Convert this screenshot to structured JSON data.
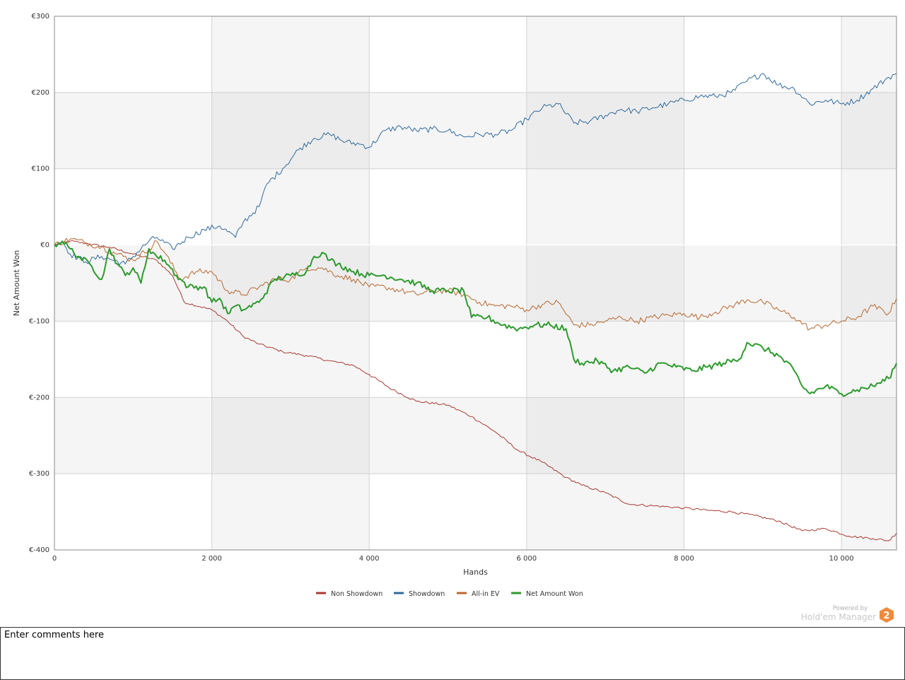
{
  "chart_data": {
    "type": "line",
    "xlabel": "Hands",
    "ylabel": "Net Amount Won",
    "xlim": [
      0,
      10700
    ],
    "ylim": [
      -400,
      300
    ],
    "x_ticks": [
      0,
      2000,
      4000,
      6000,
      8000,
      10000
    ],
    "x_tick_labels": [
      "0",
      "2 000",
      "4 000",
      "6 000",
      "8 000",
      "10 000"
    ],
    "y_ticks": [
      300,
      200,
      100,
      0,
      -100,
      -200,
      -300,
      -400
    ],
    "y_tick_labels": [
      "€300",
      "€200",
      "€100",
      "€0",
      "€-100",
      "€-200",
      "€-300",
      "€-400"
    ],
    "legend_position": "bottom",
    "series": [
      {
        "name": "Non Showdown",
        "color": "#a83a32",
        "x": [
          0,
          200,
          400,
          700,
          1000,
          1300,
          1500,
          1650,
          2000,
          2200,
          2400,
          2600,
          2900,
          3200,
          3500,
          3800,
          4000,
          4300,
          4600,
          5000,
          5300,
          5600,
          5900,
          6200,
          6500,
          6700,
          7000,
          7300,
          7600,
          8000,
          8300,
          8600,
          8900,
          9200,
          9500,
          9800,
          10100,
          10400,
          10600,
          10700
        ],
        "y": [
          0,
          5,
          2,
          -3,
          -12,
          -20,
          -40,
          -75,
          -85,
          -100,
          -120,
          -130,
          -140,
          -145,
          -152,
          -158,
          -170,
          -190,
          -205,
          -210,
          -225,
          -245,
          -270,
          -285,
          -305,
          -315,
          -325,
          -340,
          -342,
          -345,
          -348,
          -350,
          -355,
          -362,
          -375,
          -372,
          -382,
          -385,
          -388,
          -378
        ]
      },
      {
        "name": "Showdown",
        "color": "#2f6a9e",
        "x": [
          0,
          100,
          200,
          400,
          600,
          900,
          1200,
          1300,
          1500,
          1700,
          1900,
          2100,
          2300,
          2400,
          2600,
          2700,
          2900,
          3100,
          3300,
          3500,
          3700,
          3900,
          4000,
          4200,
          4400,
          4600,
          4800,
          5000,
          5200,
          5400,
          5600,
          5800,
          6000,
          6200,
          6400,
          6600,
          6800,
          7000,
          7200,
          7400,
          7600,
          7800,
          8000,
          8200,
          8400,
          8600,
          8800,
          9000,
          9200,
          9400,
          9600,
          9800,
          10000,
          10200,
          10400,
          10600,
          10700
        ],
        "y": [
          0,
          5,
          -12,
          -22,
          -15,
          -25,
          5,
          10,
          -5,
          10,
          20,
          25,
          10,
          30,
          50,
          80,
          100,
          125,
          140,
          145,
          135,
          132,
          128,
          150,
          155,
          150,
          152,
          150,
          142,
          145,
          145,
          150,
          165,
          180,
          185,
          160,
          162,
          170,
          178,
          175,
          180,
          185,
          190,
          195,
          195,
          200,
          215,
          225,
          210,
          205,
          185,
          190,
          185,
          190,
          205,
          220,
          225
        ]
      },
      {
        "name": "All-in EV",
        "color": "#b7682e",
        "x": [
          0,
          200,
          400,
          600,
          800,
          1000,
          1200,
          1300,
          1400,
          1600,
          1800,
          2000,
          2200,
          2400,
          2600,
          2800,
          3000,
          3200,
          3400,
          3600,
          3800,
          4000,
          4200,
          4400,
          4600,
          4800,
          5000,
          5200,
          5400,
          5600,
          5800,
          6000,
          6200,
          6400,
          6600,
          6800,
          7000,
          7200,
          7400,
          7600,
          7800,
          8000,
          8200,
          8400,
          8600,
          8800,
          9000,
          9200,
          9400,
          9600,
          9800,
          10000,
          10200,
          10400,
          10600,
          10700
        ],
        "y": [
          0,
          8,
          3,
          -3,
          -12,
          -20,
          -5,
          5,
          -10,
          -45,
          -35,
          -35,
          -60,
          -65,
          -55,
          -45,
          -45,
          -30,
          -30,
          -40,
          -45,
          -55,
          -55,
          -60,
          -65,
          -60,
          -60,
          -65,
          -75,
          -80,
          -80,
          -85,
          -78,
          -75,
          -105,
          -105,
          -100,
          -95,
          -100,
          -95,
          -92,
          -90,
          -95,
          -88,
          -80,
          -72,
          -75,
          -85,
          -95,
          -110,
          -105,
          -100,
          -95,
          -80,
          -90,
          -70
        ]
      },
      {
        "name": "Net Amount Won",
        "color": "#2e9a2e",
        "x": [
          0,
          100,
          200,
          300,
          450,
          600,
          700,
          800,
          900,
          1000,
          1100,
          1200,
          1300,
          1400,
          1550,
          1700,
          1900,
          2000,
          2100,
          2200,
          2300,
          2400,
          2600,
          2800,
          3000,
          3200,
          3300,
          3400,
          3500,
          3600,
          3800,
          4000,
          4200,
          4400,
          4600,
          4800,
          5000,
          5200,
          5300,
          5500,
          5700,
          5900,
          6100,
          6300,
          6500,
          6600,
          6700,
          6900,
          7100,
          7300,
          7500,
          7700,
          7900,
          8100,
          8300,
          8500,
          8700,
          8800,
          9000,
          9200,
          9400,
          9500,
          9600,
          9800,
          10000,
          10200,
          10400,
          10600,
          10700
        ],
        "y": [
          0,
          5,
          -5,
          -15,
          -25,
          -45,
          -5,
          -25,
          -40,
          -30,
          -50,
          -5,
          -15,
          -20,
          -40,
          -55,
          -55,
          -75,
          -70,
          -90,
          -80,
          -85,
          -75,
          -45,
          -40,
          -35,
          -15,
          -10,
          -20,
          -25,
          -35,
          -40,
          -40,
          -45,
          -50,
          -60,
          -60,
          -60,
          -95,
          -95,
          -105,
          -110,
          -105,
          -105,
          -110,
          -150,
          -155,
          -152,
          -165,
          -160,
          -168,
          -155,
          -160,
          -165,
          -160,
          -155,
          -150,
          -128,
          -135,
          -145,
          -165,
          -185,
          -195,
          -185,
          -195,
          -190,
          -185,
          -175,
          -155
        ]
      }
    ]
  },
  "branding": {
    "powered_by": "Powered by",
    "product": "Hold'em Manager",
    "logo_number": "2"
  },
  "comments": {
    "text": "Enter comments here"
  }
}
